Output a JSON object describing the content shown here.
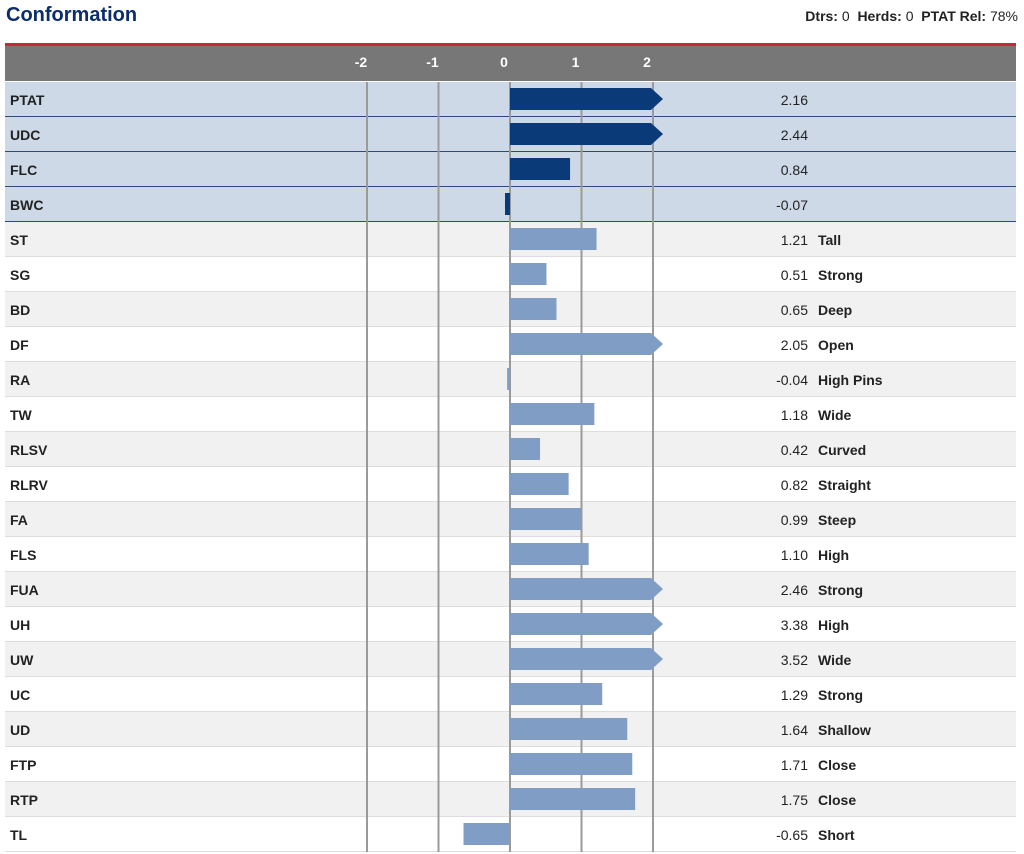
{
  "header": {
    "title": "Conformation",
    "dtrs_label": "Dtrs:",
    "dtrs_value": "0",
    "herds_label": "Herds:",
    "herds_value": "0",
    "rel_label": "PTAT Rel:",
    "rel_value": "78%"
  },
  "colors": {
    "summary_bar": "#0b3a78",
    "trait_bar": "#7f9dc5",
    "header_bg": "#777777",
    "accent_line": "#c7283a",
    "title": "#0b2e6b"
  },
  "chart_data": {
    "type": "bar",
    "orientation": "horizontal",
    "xlim": [
      -2,
      2
    ],
    "ticks": [
      "-2",
      "-1",
      "0",
      "1",
      "2"
    ],
    "tick_values": [
      -2,
      -1,
      0,
      1,
      2
    ],
    "clip_marker": "arrow when value exceeds 2",
    "rows": [
      {
        "trait": "PTAT",
        "value": 2.16,
        "label": "2.16",
        "desc": "",
        "group": "summary"
      },
      {
        "trait": "UDC",
        "value": 2.44,
        "label": "2.44",
        "desc": "",
        "group": "summary"
      },
      {
        "trait": "FLC",
        "value": 0.84,
        "label": "0.84",
        "desc": "",
        "group": "summary"
      },
      {
        "trait": "BWC",
        "value": -0.07,
        "label": "-0.07",
        "desc": "",
        "group": "summary"
      },
      {
        "trait": "ST",
        "value": 1.21,
        "label": "1.21",
        "desc": "Tall",
        "group": "trait"
      },
      {
        "trait": "SG",
        "value": 0.51,
        "label": "0.51",
        "desc": "Strong",
        "group": "trait"
      },
      {
        "trait": "BD",
        "value": 0.65,
        "label": "0.65",
        "desc": "Deep",
        "group": "trait"
      },
      {
        "trait": "DF",
        "value": 2.05,
        "label": "2.05",
        "desc": "Open",
        "group": "trait"
      },
      {
        "trait": "RA",
        "value": -0.04,
        "label": "-0.04",
        "desc": "High Pins",
        "group": "trait"
      },
      {
        "trait": "TW",
        "value": 1.18,
        "label": "1.18",
        "desc": "Wide",
        "group": "trait"
      },
      {
        "trait": "RLSV",
        "value": 0.42,
        "label": "0.42",
        "desc": "Curved",
        "group": "trait"
      },
      {
        "trait": "RLRV",
        "value": 0.82,
        "label": "0.82",
        "desc": "Straight",
        "group": "trait"
      },
      {
        "trait": "FA",
        "value": 0.99,
        "label": "0.99",
        "desc": "Steep",
        "group": "trait"
      },
      {
        "trait": "FLS",
        "value": 1.1,
        "label": "1.10",
        "desc": "High",
        "group": "trait"
      },
      {
        "trait": "FUA",
        "value": 2.46,
        "label": "2.46",
        "desc": "Strong",
        "group": "trait"
      },
      {
        "trait": "UH",
        "value": 3.38,
        "label": "3.38",
        "desc": "High",
        "group": "trait"
      },
      {
        "trait": "UW",
        "value": 3.52,
        "label": "3.52",
        "desc": "Wide",
        "group": "trait"
      },
      {
        "trait": "UC",
        "value": 1.29,
        "label": "1.29",
        "desc": "Strong",
        "group": "trait"
      },
      {
        "trait": "UD",
        "value": 1.64,
        "label": "1.64",
        "desc": "Shallow",
        "group": "trait"
      },
      {
        "trait": "FTP",
        "value": 1.71,
        "label": "1.71",
        "desc": "Close",
        "group": "trait"
      },
      {
        "trait": "RTP",
        "value": 1.75,
        "label": "1.75",
        "desc": "Close",
        "group": "trait"
      },
      {
        "trait": "TL",
        "value": -0.65,
        "label": "-0.65",
        "desc": "Short",
        "group": "trait"
      }
    ]
  }
}
